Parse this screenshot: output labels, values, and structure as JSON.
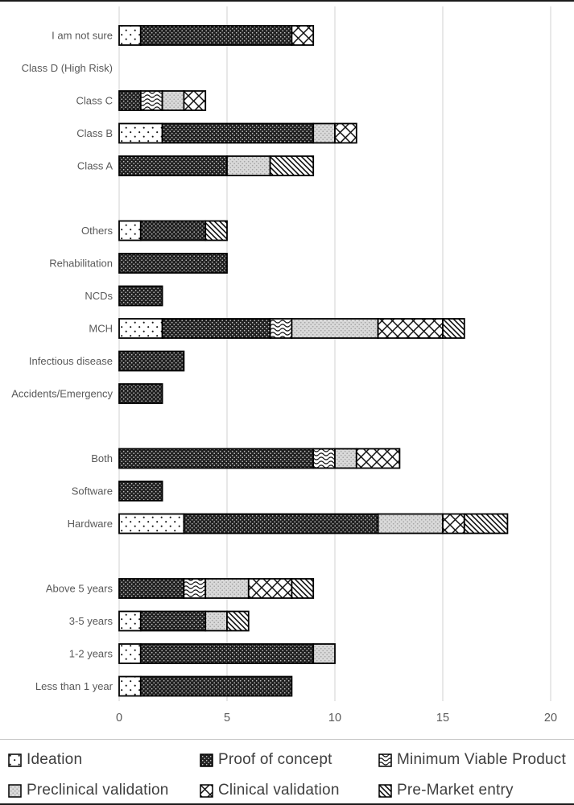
{
  "figure": {
    "background": "#ffffff",
    "border_color": "#1a1a1a",
    "separator_color": "#c9c9c9"
  },
  "colors": {
    "gridline": "#d9d9d9",
    "bar_stroke": "#000000",
    "axis_text": "#595959",
    "legend_text": "#3f3f3f",
    "dark_fill": "#212121",
    "gray_fill": "#d9d9d9"
  },
  "chart_data": {
    "type": "bar",
    "orientation": "horizontal",
    "stacked": true,
    "title": "",
    "xlabel": "",
    "ylabel": "",
    "xlim": [
      0,
      20
    ],
    "x_ticks": [
      "0",
      "5",
      "10",
      "15",
      "20"
    ],
    "grid": "vertical-only",
    "legend_position": "bottom",
    "series_names": [
      "Ideation",
      "Proof of concept",
      "Minimum Viable Product",
      "Preclinical validation",
      "Clinical validation",
      "Pre-Market entry"
    ],
    "series_patterns": [
      "ideation",
      "poc",
      "mvp",
      "preclinical",
      "clinical",
      "premarket"
    ],
    "groups": [
      {
        "name": "regulatory-class",
        "rows": [
          {
            "category": "I am not sure",
            "values": [
              1,
              7,
              0,
              0,
              1,
              0
            ],
            "total": 9
          },
          {
            "category": "Class D (High Risk)",
            "values": [
              0,
              0,
              0,
              0,
              0,
              0
            ],
            "total": 0
          },
          {
            "category": "Class C",
            "values": [
              0,
              1,
              1,
              1,
              1,
              0
            ],
            "total": 4
          },
          {
            "category": "Class B",
            "values": [
              2,
              7,
              0,
              1,
              1,
              0
            ],
            "total": 11
          },
          {
            "category": "Class A",
            "values": [
              0,
              5,
              0,
              2,
              0,
              2
            ],
            "total": 9
          }
        ]
      },
      {
        "name": "health-focus",
        "rows": [
          {
            "category": "Others",
            "values": [
              1,
              3,
              0,
              0,
              0,
              1
            ],
            "total": 5
          },
          {
            "category": "Rehabilitation",
            "values": [
              0,
              5,
              0,
              0,
              0,
              0
            ],
            "total": 5
          },
          {
            "category": "NCDs",
            "values": [
              0,
              2,
              0,
              0,
              0,
              0
            ],
            "total": 2
          },
          {
            "category": "MCH",
            "values": [
              2,
              5,
              1,
              4,
              3,
              1
            ],
            "total": 16
          },
          {
            "category": "Infectious disease",
            "values": [
              0,
              3,
              0,
              0,
              0,
              0
            ],
            "total": 3
          },
          {
            "category": "Accidents/Emergency",
            "values": [
              0,
              2,
              0,
              0,
              0,
              0
            ],
            "total": 2
          }
        ]
      },
      {
        "name": "product-type",
        "rows": [
          {
            "category": "Both",
            "values": [
              0,
              9,
              1,
              1,
              2,
              0
            ],
            "total": 13
          },
          {
            "category": "Software",
            "values": [
              0,
              2,
              0,
              0,
              0,
              0
            ],
            "total": 2
          },
          {
            "category": "Hardware",
            "values": [
              3,
              9,
              0,
              3,
              1,
              2
            ],
            "total": 18
          }
        ]
      },
      {
        "name": "duration",
        "rows": [
          {
            "category": "Above 5 years",
            "values": [
              0,
              3,
              1,
              2,
              2,
              1
            ],
            "total": 9
          },
          {
            "category": "3-5 years",
            "values": [
              1,
              3,
              0,
              1,
              0,
              1
            ],
            "total": 6
          },
          {
            "category": "1-2 years",
            "values": [
              1,
              8,
              0,
              1,
              0,
              0
            ],
            "total": 10
          },
          {
            "category": "Less than 1 year",
            "values": [
              1,
              7,
              0,
              0,
              0,
              0
            ],
            "total": 8
          }
        ]
      }
    ]
  },
  "legend": {
    "items": [
      {
        "label": "Ideation",
        "pattern": "ideation"
      },
      {
        "label": "Proof of concept",
        "pattern": "poc"
      },
      {
        "label": "Minimum Viable Product",
        "pattern": "mvp"
      },
      {
        "label": "Preclinical validation",
        "pattern": "preclinical"
      },
      {
        "label": "Clinical validation",
        "pattern": "clinical"
      },
      {
        "label": "Pre-Market entry",
        "pattern": "premarket"
      }
    ]
  }
}
